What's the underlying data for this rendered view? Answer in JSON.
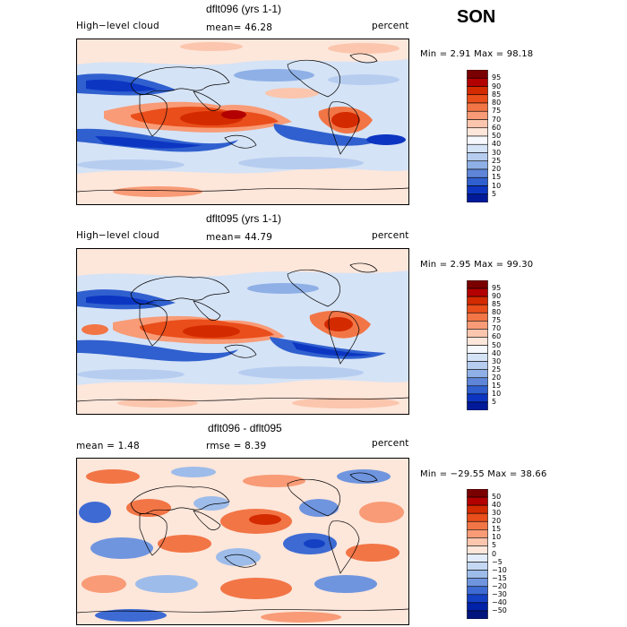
{
  "season": "SON",
  "panels": [
    {
      "title": "dflt096 (yrs 1-1)",
      "left_label": "High−level cloud",
      "mean_text": "mean=  46.28",
      "units": "percent",
      "min_max": "Min =    2.91 Max =   98.18",
      "colorbar": {
        "levels": [
          "95",
          "90",
          "85",
          "80",
          "75",
          "70",
          "60",
          "50",
          "40",
          "30",
          "25",
          "20",
          "15",
          "10",
          "5"
        ],
        "colors": [
          "#7a0000",
          "#b30000",
          "#d42a00",
          "#e94e1b",
          "#f27546",
          "#f89b76",
          "#fbc6ad",
          "#fde6da",
          "#f5f8fc",
          "#d5e3f6",
          "#b6cdf0",
          "#8eb0e6",
          "#5e85d8",
          "#3060cf",
          "#0c36c2",
          "#001a9a"
        ]
      }
    },
    {
      "title": "dflt095 (yrs 1-1)",
      "left_label": "High−level cloud",
      "mean_text": "mean=  44.79",
      "units": "percent",
      "min_max": "Min =    2.95 Max =   99.30",
      "colorbar": {
        "levels": [
          "95",
          "90",
          "85",
          "80",
          "75",
          "70",
          "60",
          "50",
          "40",
          "30",
          "25",
          "20",
          "15",
          "10",
          "5"
        ],
        "colors": [
          "#7a0000",
          "#b30000",
          "#d42a00",
          "#e94e1b",
          "#f27546",
          "#f89b76",
          "#fbc6ad",
          "#fde6da",
          "#f5f8fc",
          "#d5e3f6",
          "#b6cdf0",
          "#8eb0e6",
          "#5e85d8",
          "#3060cf",
          "#0c36c2",
          "#001a9a"
        ]
      }
    },
    {
      "title": "dflt096 - dflt095",
      "left_label": "mean =     1.48",
      "mean_text": "rmse =    8.39",
      "units": "percent",
      "min_max": "Min = −29.55 Max =   38.66",
      "colorbar": {
        "levels": [
          "50",
          "40",
          "30",
          "20",
          "15",
          "10",
          "5",
          "0",
          "−5",
          "−10",
          "−15",
          "−20",
          "−30",
          "−40",
          "−50"
        ],
        "colors": [
          "#7a0000",
          "#b30000",
          "#d42a00",
          "#e94e1b",
          "#f27546",
          "#f89b76",
          "#fbc6ad",
          "#fde6da",
          "#e2ecfa",
          "#c5d8f3",
          "#9dbcea",
          "#6f95df",
          "#3e6bd3",
          "#1440c4",
          "#0022a8",
          "#00147e"
        ]
      }
    }
  ]
}
